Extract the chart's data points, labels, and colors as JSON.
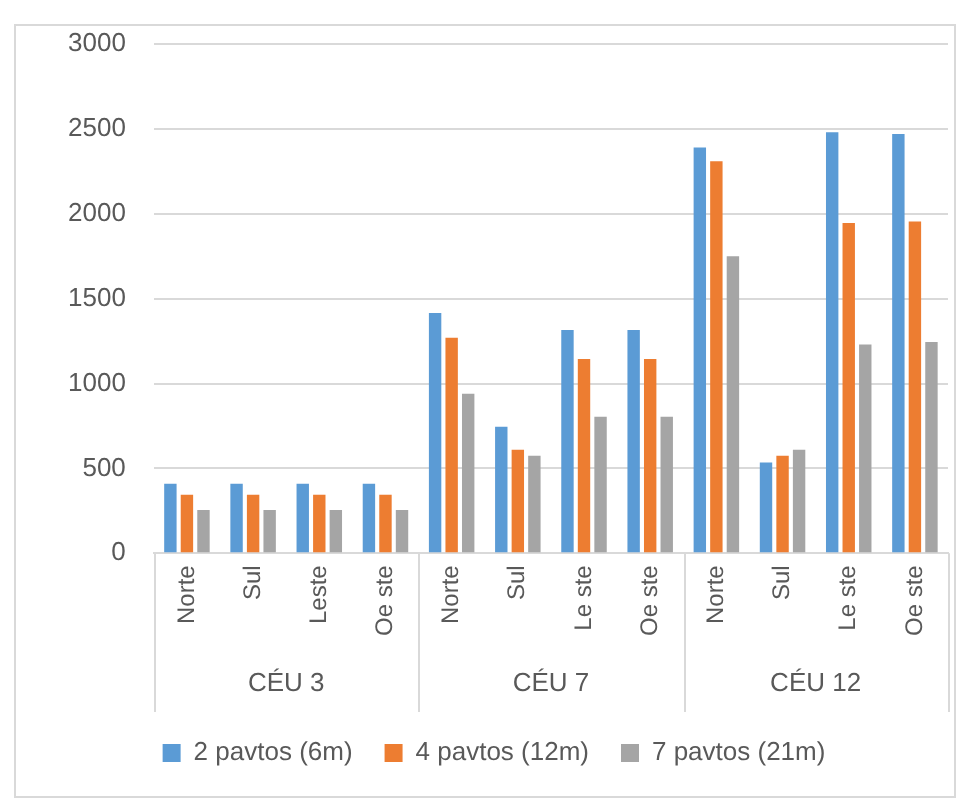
{
  "chart_data": {
    "type": "bar",
    "categories": [
      "Norte",
      "Sul",
      "Leste",
      "Oe ste",
      "Norte",
      "Sul",
      "Le ste",
      "Oe ste",
      "Norte",
      "Sul",
      "Le ste",
      "Oe ste"
    ],
    "series": [
      {
        "name": "2 pavtos (6m)",
        "color": "#5b9bd5",
        "values": [
          410,
          410,
          410,
          410,
          1415,
          745,
          1315,
          1315,
          2390,
          535,
          2480,
          2470
        ]
      },
      {
        "name": "4 pavtos (12m)",
        "color": "#ed7d31",
        "values": [
          345,
          345,
          345,
          345,
          1270,
          610,
          1145,
          1145,
          2310,
          575,
          1945,
          1955
        ]
      },
      {
        "name": "7 pavtos (21m)",
        "color": "#a5a5a5",
        "values": [
          255,
          255,
          255,
          255,
          940,
          575,
          805,
          805,
          1750,
          610,
          1230,
          1245
        ]
      }
    ],
    "annotations": [
      "CÉU 3",
      "CÉU 7",
      "CÉU 12"
    ],
    "ylim": [
      0,
      3000
    ],
    "yticks": [
      0,
      500,
      1000,
      1500,
      2000,
      2500,
      3000
    ],
    "grid": "y",
    "legend": "bottom"
  }
}
